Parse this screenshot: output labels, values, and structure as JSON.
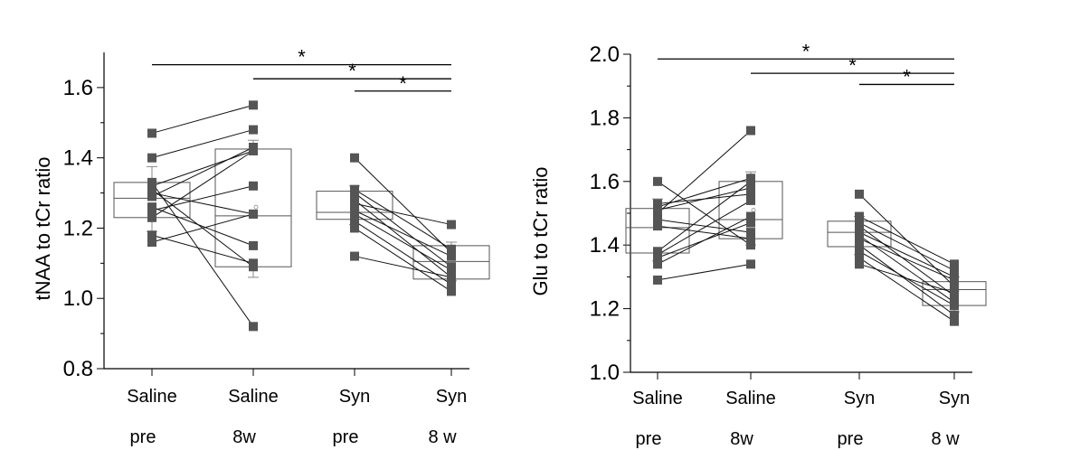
{
  "chart_data": [
    {
      "type": "box",
      "ylabel": "tNAA to tCr ratio",
      "ylim": [
        0.8,
        1.7
      ],
      "yticks": [
        0.8,
        1.0,
        1.2,
        1.4,
        1.6
      ],
      "categories": [
        {
          "line1": "Saline",
          "line2": "pre"
        },
        {
          "line1": "Saline",
          "line2": "8w"
        },
        {
          "line1": "Syn",
          "line2": "pre"
        },
        {
          "line1": "Syn",
          "line2": "8 w"
        }
      ],
      "boxes": [
        {
          "q1": 1.23,
          "median": 1.285,
          "q3": 1.33,
          "low": 1.19,
          "high": 1.375,
          "mean": 1.29
        },
        {
          "q1": 1.09,
          "median": 1.235,
          "q3": 1.425,
          "low": 1.06,
          "high": 1.45,
          "mean": 1.26
        },
        {
          "q1": 1.225,
          "median": 1.245,
          "q3": 1.305,
          "low": 1.21,
          "high": 1.32,
          "mean": 1.25
        },
        {
          "q1": 1.055,
          "median": 1.105,
          "q3": 1.15,
          "low": 1.05,
          "high": 1.16,
          "mean": 1.105
        }
      ],
      "pairs": [
        {
          "groups": [
            0,
            1
          ],
          "values": [
            [
              1.47,
              1.55
            ],
            [
              1.4,
              1.48
            ],
            [
              1.33,
              0.92
            ],
            [
              1.32,
              1.42
            ],
            [
              1.31,
              1.09
            ],
            [
              1.3,
              1.24
            ],
            [
              1.29,
              1.43
            ],
            [
              1.26,
              1.15
            ],
            [
              1.25,
              1.32
            ],
            [
              1.23,
              1.42
            ],
            [
              1.18,
              1.1
            ],
            [
              1.16,
              1.24
            ]
          ]
        },
        {
          "groups": [
            2,
            3
          ],
          "values": [
            [
              1.4,
              1.13
            ],
            [
              1.31,
              1.14
            ],
            [
              1.3,
              1.09
            ],
            [
              1.28,
              1.06
            ],
            [
              1.27,
              1.21
            ],
            [
              1.25,
              1.12
            ],
            [
              1.24,
              1.08
            ],
            [
              1.22,
              1.04
            ],
            [
              1.2,
              1.02
            ],
            [
              1.12,
              1.06
            ]
          ]
        }
      ],
      "significance": [
        {
          "from": 0,
          "to": 3,
          "y": 1.665,
          "label": "*"
        },
        {
          "from": 1,
          "to": 3,
          "y": 1.625,
          "label": "*"
        },
        {
          "from": 2,
          "to": 3,
          "y": 1.59,
          "label": "*"
        }
      ]
    },
    {
      "type": "box",
      "ylabel": "Glu to tCr ratio",
      "ylim": [
        1.0,
        2.0
      ],
      "yticks": [
        1.0,
        1.2,
        1.4,
        1.6,
        1.8,
        2.0
      ],
      "categories": [
        {
          "line1": "Saline",
          "line2": "pre"
        },
        {
          "line1": "Saline",
          "line2": "8w"
        },
        {
          "line1": "Syn",
          "line2": "pre"
        },
        {
          "line1": "Syn",
          "line2": "8 w"
        }
      ],
      "boxes": [
        {
          "q1": 1.375,
          "median": 1.455,
          "q3": 1.515,
          "low": 1.35,
          "high": 1.545,
          "mean": 1.455
        },
        {
          "q1": 1.42,
          "median": 1.48,
          "q3": 1.6,
          "low": 1.4,
          "high": 1.63,
          "mean": 1.51
        },
        {
          "q1": 1.395,
          "median": 1.44,
          "q3": 1.475,
          "low": 1.37,
          "high": 1.49,
          "mean": 1.435
        },
        {
          "q1": 1.21,
          "median": 1.26,
          "q3": 1.285,
          "low": 1.19,
          "high": 1.3,
          "mean": 1.255
        }
      ],
      "pairs": [
        {
          "groups": [
            0,
            1
          ],
          "values": [
            [
              1.6,
              1.4
            ],
            [
              1.53,
              1.56
            ],
            [
              1.52,
              1.61
            ],
            [
              1.51,
              1.58
            ],
            [
              1.5,
              1.76
            ],
            [
              1.48,
              1.44
            ],
            [
              1.46,
              1.42
            ],
            [
              1.38,
              1.6
            ],
            [
              1.37,
              1.54
            ],
            [
              1.36,
              1.47
            ],
            [
              1.34,
              1.49
            ],
            [
              1.29,
              1.34
            ]
          ]
        },
        {
          "groups": [
            2,
            3
          ],
          "values": [
            [
              1.56,
              1.27
            ],
            [
              1.49,
              1.34
            ],
            [
              1.47,
              1.32
            ],
            [
              1.46,
              1.24
            ],
            [
              1.44,
              1.3
            ],
            [
              1.43,
              1.22
            ],
            [
              1.42,
              1.29
            ],
            [
              1.4,
              1.18
            ],
            [
              1.38,
              1.21
            ],
            [
              1.36,
              1.16
            ],
            [
              1.34,
              1.25
            ]
          ]
        }
      ],
      "significance": [
        {
          "from": 0,
          "to": 3,
          "y": 1.985,
          "label": "*"
        },
        {
          "from": 1,
          "to": 3,
          "y": 1.94,
          "label": "*"
        },
        {
          "from": 2,
          "to": 3,
          "y": 1.905,
          "label": "*"
        }
      ]
    }
  ]
}
